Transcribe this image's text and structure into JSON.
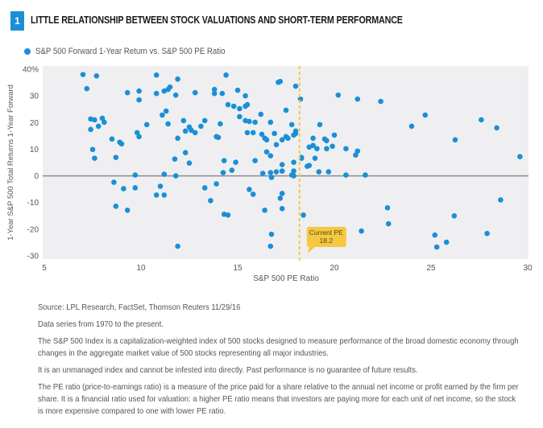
{
  "header": {
    "badge": "1",
    "title": "LITTLE RELATIONSHIP BETWEEN STOCK VALUATIONS AND SHORT-TERM PERFORMANCE"
  },
  "colors": {
    "accent": "#1a8fd6",
    "plot_bg": "#efeff1",
    "zero_line": "#8c8c8c",
    "current_pe": "#f5c842"
  },
  "chart_data": {
    "type": "scatter",
    "title": "LITTLE RELATIONSHIP BETWEEN STOCK VALUATIONS AND SHORT-TERM PERFORMANCE",
    "legend": [
      "S&P 500 Forward 1-Year Return vs. S&P 500 PE Ratio"
    ],
    "legend_position": "top-left",
    "xlabel": "S&P 500 PE Ratio",
    "ylabel": "1-Year S&P 500 Total Returns 1-Year Forward",
    "xlim": [
      5,
      30
    ],
    "ylim": [
      -30,
      40
    ],
    "x_ticks": [
      "5",
      "10",
      "15",
      "20",
      "25",
      "30"
    ],
    "x_tick_values": [
      5,
      10,
      15,
      20,
      25,
      30
    ],
    "y_ticks": [
      "40%",
      "30",
      "20",
      "10",
      "0",
      "-10",
      "-20",
      "-30"
    ],
    "y_tick_values": [
      40,
      30,
      20,
      10,
      0,
      -10,
      -20,
      -30
    ],
    "grid": false,
    "reference_line": {
      "axis": "x",
      "value": 18.2,
      "style": "dashed"
    },
    "annotation": {
      "label": "Current PE",
      "value": "18.2"
    },
    "series": [
      {
        "name": "S&P 500 Forward 1-Year Return vs. S&P 500 PE Ratio",
        "points": [
          [
            7.0,
            38
          ],
          [
            7.7,
            37.5
          ],
          [
            7.2,
            32.7
          ],
          [
            9.3,
            31.2
          ],
          [
            9.9,
            31.8
          ],
          [
            9.9,
            28.5
          ],
          [
            7.4,
            21.3
          ],
          [
            7.6,
            21
          ],
          [
            8.0,
            21.6
          ],
          [
            8.1,
            20.1
          ],
          [
            7.8,
            18.6
          ],
          [
            7.4,
            17.4
          ],
          [
            10.3,
            19.2
          ],
          [
            9.8,
            16.2
          ],
          [
            9.9,
            14.7
          ],
          [
            8.5,
            13.8
          ],
          [
            8.9,
            12.6
          ],
          [
            9.0,
            12
          ],
          [
            7.5,
            9.9
          ],
          [
            7.6,
            6.6
          ],
          [
            8.7,
            6.9
          ],
          [
            9.7,
            0.3
          ],
          [
            8.6,
            -2.4
          ],
          [
            9.1,
            -4.8
          ],
          [
            9.7,
            -4.5
          ],
          [
            8.7,
            -11.4
          ],
          [
            9.3,
            -12.9
          ],
          [
            10.8,
            37.8
          ],
          [
            11.9,
            36.3
          ],
          [
            10.8,
            30.9
          ],
          [
            11.2,
            31.8
          ],
          [
            11.4,
            32.4
          ],
          [
            11.5,
            33.3
          ],
          [
            11.8,
            30.3
          ],
          [
            12.8,
            31.2
          ],
          [
            14.4,
            37.8
          ],
          [
            13.8,
            32.4
          ],
          [
            13.8,
            30.9
          ],
          [
            14.2,
            30.9
          ],
          [
            15.0,
            32.1
          ],
          [
            14.5,
            26.7
          ],
          [
            14.8,
            26.1
          ],
          [
            15.1,
            25.2
          ],
          [
            11.1,
            22.8
          ],
          [
            11.3,
            24.3
          ],
          [
            11.4,
            19.5
          ],
          [
            12.2,
            20.7
          ],
          [
            12.3,
            16.8
          ],
          [
            12.5,
            18.3
          ],
          [
            12.6,
            17.1
          ],
          [
            12.8,
            16.2
          ],
          [
            13.1,
            18.6
          ],
          [
            13.3,
            20.7
          ],
          [
            14.1,
            19.5
          ],
          [
            13.9,
            14.7
          ],
          [
            14.0,
            14.4
          ],
          [
            11.9,
            14.1
          ],
          [
            12.3,
            8.7
          ],
          [
            11.75,
            6.3
          ],
          [
            12.5,
            4.8
          ],
          [
            11.2,
            0.6
          ],
          [
            11.8,
            0
          ],
          [
            11.0,
            -3.9
          ],
          [
            10.8,
            -7.2
          ],
          [
            11.2,
            -7.2
          ],
          [
            13.3,
            -4.5
          ],
          [
            13.9,
            -3
          ],
          [
            13.6,
            -9.3
          ],
          [
            14.3,
            -14.4
          ],
          [
            11.9,
            -26.4
          ],
          [
            14.25,
            1.2
          ],
          [
            14.7,
            2.1
          ],
          [
            14.3,
            5.7
          ],
          [
            14.9,
            5.1
          ],
          [
            17.1,
            35.1
          ],
          [
            17.2,
            35.4
          ],
          [
            18.0,
            33.6
          ],
          [
            18.25,
            28.8
          ],
          [
            15.4,
            30
          ],
          [
            15.4,
            26.1
          ],
          [
            15.5,
            26.7
          ],
          [
            15.1,
            22.2
          ],
          [
            15.4,
            20.7
          ],
          [
            15.6,
            20.4
          ],
          [
            15.9,
            20.1
          ],
          [
            16.2,
            23.1
          ],
          [
            16.7,
            20.1
          ],
          [
            17.5,
            24.6
          ],
          [
            17.8,
            19.2
          ],
          [
            15.5,
            16.2
          ],
          [
            15.8,
            16.2
          ],
          [
            16.25,
            15.6
          ],
          [
            16.4,
            14.1
          ],
          [
            16.5,
            13.5
          ],
          [
            16.9,
            15.9
          ],
          [
            17.0,
            11.7
          ],
          [
            17.3,
            13.5
          ],
          [
            17.5,
            14.7
          ],
          [
            17.6,
            14.1
          ],
          [
            17.9,
            15.3
          ],
          [
            18.0,
            16.8
          ],
          [
            18.0,
            15.9
          ],
          [
            16.5,
            9.0
          ],
          [
            16.7,
            7.5
          ],
          [
            15.9,
            5.7
          ],
          [
            17.0,
            1.5
          ],
          [
            17.3,
            1.8
          ],
          [
            17.9,
            1.8
          ],
          [
            17.9,
            5.1
          ],
          [
            18.3,
            6.9
          ],
          [
            16.3,
            0.9
          ],
          [
            17.9,
            0
          ],
          [
            17.3,
            4.2
          ],
          [
            18.7,
            3.9
          ],
          [
            16.75,
            -0.6
          ],
          [
            16.7,
            1.2
          ],
          [
            17.8,
            0.3
          ],
          [
            15.6,
            -5.1
          ],
          [
            15.8,
            -6.9
          ],
          [
            17.3,
            -6.6
          ],
          [
            17.2,
            -8.4
          ],
          [
            16.4,
            -12.9
          ],
          [
            17.3,
            -12.3
          ],
          [
            14.5,
            -14.7
          ],
          [
            18.4,
            -14.7
          ],
          [
            16.75,
            -21.9
          ],
          [
            16.7,
            -26.4
          ],
          [
            20.2,
            30.3
          ],
          [
            21.2,
            28.8
          ],
          [
            22.4,
            27.9
          ],
          [
            19.25,
            19.2
          ],
          [
            18.9,
            14.1
          ],
          [
            19.5,
            13.8
          ],
          [
            19.6,
            13.2
          ],
          [
            20.0,
            15.3
          ],
          [
            18.7,
            10.8
          ],
          [
            18.9,
            11.4
          ],
          [
            19.1,
            10.2
          ],
          [
            19.6,
            10.2
          ],
          [
            19.9,
            11.1
          ],
          [
            20.6,
            10.2
          ],
          [
            21.2,
            9.3
          ],
          [
            21.1,
            7.8
          ],
          [
            18.3,
            6.6
          ],
          [
            19.0,
            6.6
          ],
          [
            18.6,
            3.6
          ],
          [
            19.2,
            1.5
          ],
          [
            19.7,
            1.5
          ],
          [
            20.6,
            0.3
          ],
          [
            21.6,
            0.3
          ],
          [
            21.4,
            -20.7
          ],
          [
            24.0,
            18.6
          ],
          [
            24.7,
            22.8
          ],
          [
            27.6,
            21.0
          ],
          [
            28.4,
            18.0
          ],
          [
            26.25,
            13.5
          ],
          [
            29.6,
            7.2
          ],
          [
            22.75,
            -12.0
          ],
          [
            22.8,
            -18.0
          ],
          [
            26.2,
            -15.0
          ],
          [
            28.6,
            -9.0
          ],
          [
            25.2,
            -22.2
          ],
          [
            25.8,
            -24.9
          ],
          [
            25.3,
            -26.7
          ],
          [
            27.9,
            -21.6
          ]
        ]
      }
    ]
  },
  "notes": {
    "source": "Source: LPL Research, FactSet, Thomson Reuters   11/29/16",
    "series_range": "Data series from 1970 to the present.",
    "index_def": "The S&P 500 Index is a capitalization-weighted index of 500 stocks designed to measure performance of the broad domestic economy through changes in the aggregate market value of 500 stocks representing all major industries.",
    "disclaimer": "It is an unmanaged index and cannot be infested into directly. Past performance is no guarantee of future results.",
    "pe_def": "The PE ratio (price-to-earnings ratio) is a measure of the price paid for a share relative to the annual net income or profit earned by the firm per share. It is a financial ratio used for valuation: a higher PE ratio means that investors are paying more for each unit of net income, so the stock is more expensive compared to one with lower PE ratio."
  }
}
